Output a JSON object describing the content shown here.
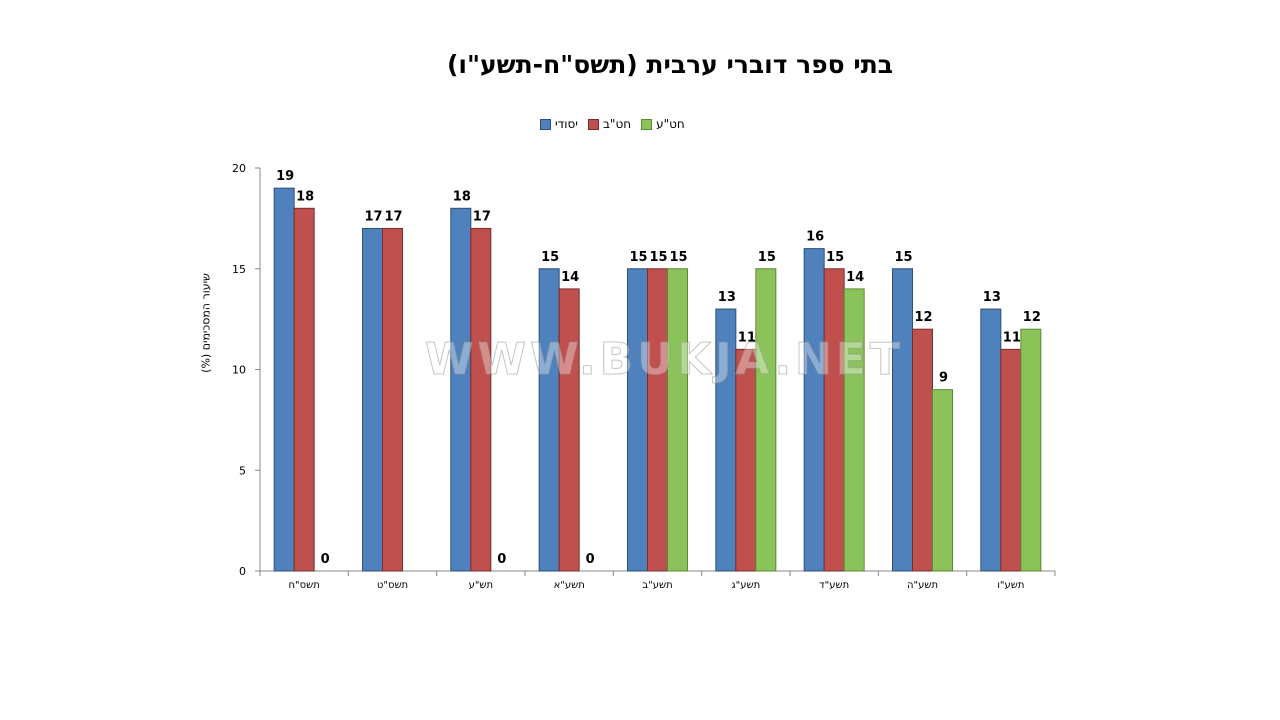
{
  "chart_data": {
    "type": "bar",
    "title": "בתי ספר דוברי ערבית (תשס\"ח-תשע\"ו)",
    "ylabel": "שיעור המסכימים (%)",
    "xlabel": "",
    "ylim": [
      0,
      20
    ],
    "yticks": [
      0,
      5,
      10,
      15,
      20
    ],
    "grid": false,
    "legend_position": "top",
    "categories": [
      "תשס\"ח",
      "תשס\"ט",
      "תש\"ע",
      "תשע\"א",
      "תשע\"ב",
      "תשע\"ג",
      "תשע\"ד",
      "תשע\"ה",
      "תשע\"ו"
    ],
    "series": [
      {
        "name": "יסודי",
        "color": "#4f81bd",
        "values": [
          19,
          17,
          18,
          15,
          15,
          13,
          16,
          15,
          13
        ]
      },
      {
        "name": "חט\"ב",
        "color": "#c0504d",
        "values": [
          18,
          17,
          17,
          14,
          15,
          11,
          15,
          12,
          11
        ]
      },
      {
        "name": "חט\"ע",
        "color": "#8bc35a",
        "values": [
          0,
          null,
          0,
          0,
          15,
          15,
          14,
          9,
          12
        ]
      }
    ]
  },
  "watermark": "WWW.BUKJA.NET"
}
